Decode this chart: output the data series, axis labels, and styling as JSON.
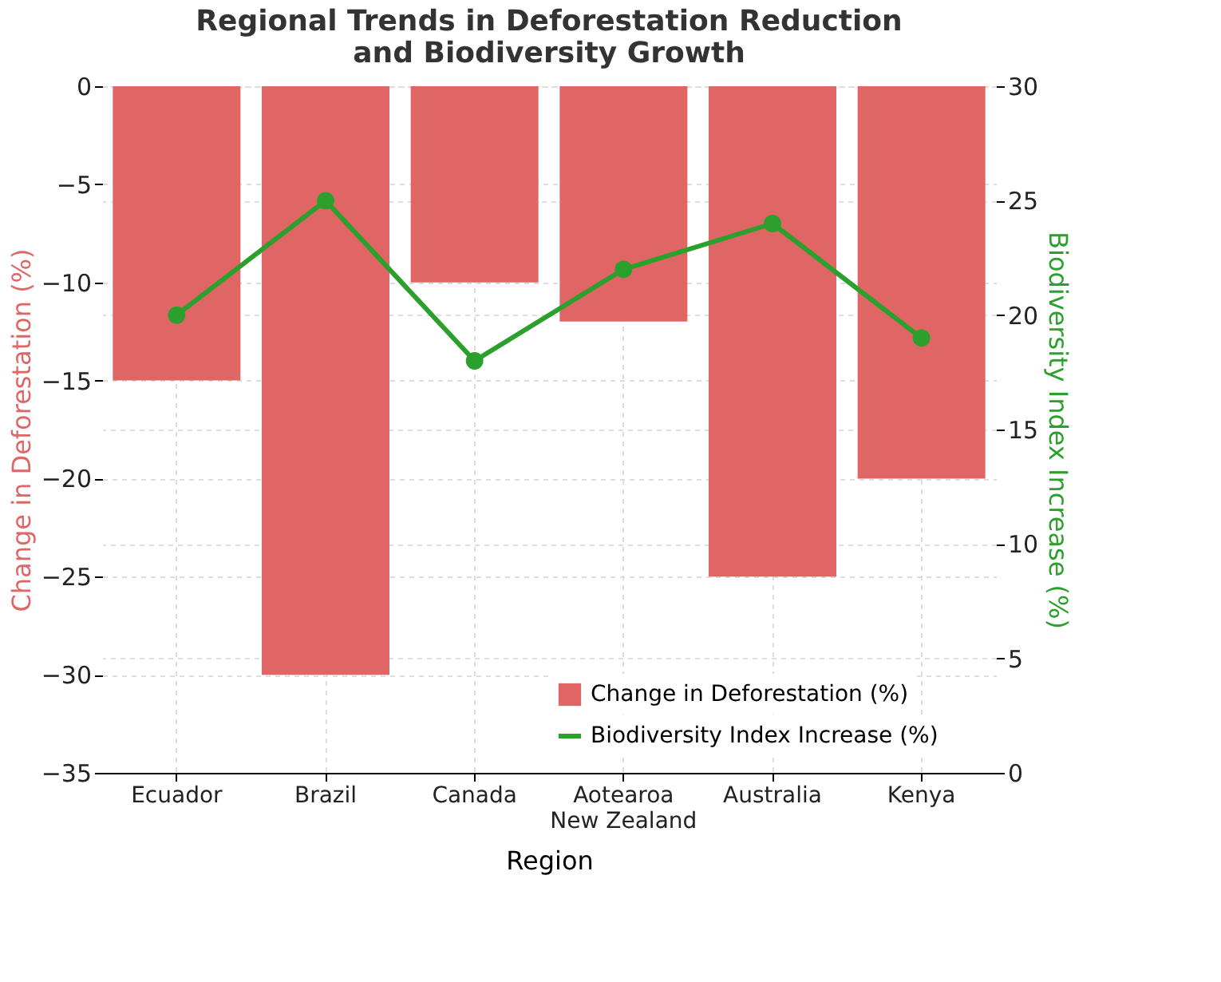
{
  "chart_data": {
    "type": "bar",
    "title": "Regional Trends in Deforestation Reduction\nand Biodiversity Growth",
    "xlabel": "Region",
    "ylabel": "Change in Deforestation (%)",
    "y2label": "Biodiversity Index Increase (%)",
    "categories": [
      "Ecuador",
      "Brazil",
      "Canada",
      "Aotearoa\nNew Zealand",
      "Australia",
      "Kenya"
    ],
    "series": [
      {
        "name": "Change in Deforestation (%)",
        "color": "#e06666",
        "values": [
          -15,
          -30,
          -10,
          -12,
          -25,
          -20
        ]
      },
      {
        "name": "Biodiversity Index Increase (%)",
        "type": "line",
        "axis": "y2",
        "color": "#2ca02c",
        "marker": "circle",
        "values": [
          20,
          25,
          18,
          22,
          24,
          19
        ]
      }
    ],
    "ylim": [
      -35,
      0
    ],
    "yticks": [
      -35,
      -30,
      -25,
      -20,
      -15,
      -10,
      -5,
      0
    ],
    "y2lim": [
      0,
      30
    ],
    "y2ticks": [
      0,
      5,
      10,
      15,
      20,
      25,
      30
    ],
    "grid": true,
    "legend": "bottom right"
  }
}
